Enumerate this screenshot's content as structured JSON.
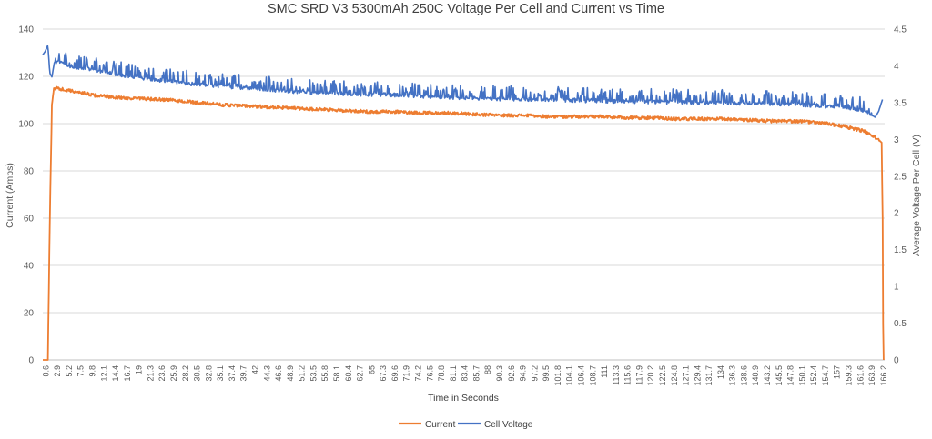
{
  "chart_data": {
    "type": "line",
    "title": "SMC SRD V3 5300mAh 250C Voltage Per Cell and Current vs Time",
    "xlabel": "Time in Seconds",
    "ylabel_left": "Current (Amps)",
    "ylabel_right": "Average Voltage Per Cell (V)",
    "ylim_left": [
      0,
      140
    ],
    "ylim_right": [
      0,
      4.5
    ],
    "yticks_left": [
      "0",
      "20",
      "40",
      "60",
      "80",
      "100",
      "120",
      "140"
    ],
    "yticks_right": [
      "0",
      "0.5",
      "1",
      "1.5",
      "2",
      "2.5",
      "3",
      "3.5",
      "4",
      "4.5"
    ],
    "x_range": [
      0,
      166.4
    ],
    "x_tick_labels": [
      "0.6",
      "2.9",
      "5.2",
      "7.5",
      "9.8",
      "12.1",
      "14.4",
      "16.7",
      "19",
      "21.3",
      "23.6",
      "25.9",
      "28.2",
      "30.5",
      "32.8",
      "35.1",
      "37.4",
      "39.7",
      "42",
      "44.3",
      "46.6",
      "48.9",
      "51.2",
      "53.5",
      "55.8",
      "58.1",
      "60.4",
      "62.7",
      "65",
      "67.3",
      "69.6",
      "71.9",
      "74.2",
      "76.5",
      "78.8",
      "81.1",
      "83.4",
      "85.7",
      "88",
      "90.3",
      "92.6",
      "94.9",
      "97.2",
      "99.5",
      "101.8",
      "104.1",
      "106.4",
      "108.7",
      "111",
      "113.3",
      "115.6",
      "117.9",
      "120.2",
      "122.5",
      "124.8",
      "127.1",
      "129.4",
      "131.7",
      "134",
      "136.3",
      "138.6",
      "140.9",
      "143.2",
      "145.5",
      "147.8",
      "150.1",
      "152.4",
      "154.7",
      "157",
      "159.3",
      "161.6",
      "163.9",
      "166.2"
    ],
    "grid": true,
    "legend_position": "bottom",
    "series": [
      {
        "name": "Current",
        "axis": "left",
        "color": "#ED7D31",
        "x": [
          0,
          1,
          1.4,
          1.8,
          2.2,
          2.8,
          5,
          8,
          10,
          15,
          20,
          25,
          30,
          35,
          40,
          45,
          50,
          55,
          60,
          65,
          70,
          75,
          80,
          85,
          90,
          95,
          100,
          105,
          110,
          115,
          120,
          125,
          130,
          135,
          140,
          145,
          150,
          155,
          158,
          160,
          162,
          164,
          165,
          165.8,
          166.0,
          166.1,
          166.2
        ],
        "values": [
          0,
          0,
          60,
          108,
          115,
          115,
          114,
          113,
          112,
          111,
          110.5,
          110,
          109,
          108,
          107.5,
          107,
          106.5,
          106,
          105.5,
          105,
          105,
          104.5,
          104.5,
          104,
          103.5,
          103.5,
          103,
          103,
          103,
          102.5,
          102.5,
          102,
          102,
          102,
          101.5,
          101,
          101,
          100,
          99,
          98,
          97,
          95,
          93.5,
          92,
          60,
          15,
          0
        ]
      },
      {
        "name": "Cell Voltage",
        "axis": "right",
        "color": "#4472C4",
        "x": [
          0,
          0.5,
          1.0,
          1.4,
          1.8,
          2.3,
          3,
          5,
          10,
          15,
          20,
          30,
          40,
          50,
          60,
          70,
          80,
          90,
          100,
          110,
          120,
          130,
          140,
          150,
          155,
          160,
          163,
          164.5,
          165.2,
          166.0
        ],
        "values": [
          4.15,
          4.2,
          4.28,
          3.9,
          3.85,
          4.05,
          4.05,
          4.0,
          3.95,
          3.88,
          3.83,
          3.75,
          3.7,
          3.65,
          3.62,
          3.6,
          3.57,
          3.55,
          3.54,
          3.52,
          3.51,
          3.5,
          3.49,
          3.47,
          3.45,
          3.42,
          3.38,
          3.3,
          3.38,
          3.55
        ]
      }
    ]
  }
}
